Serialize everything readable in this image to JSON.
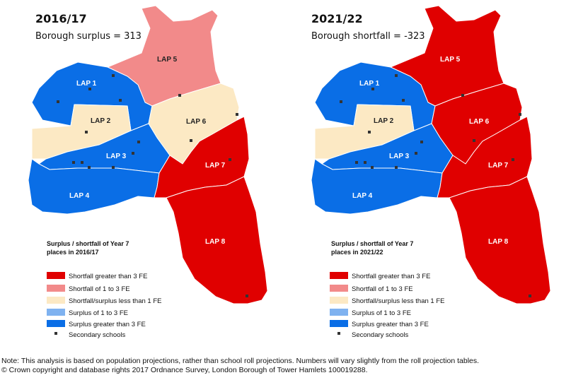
{
  "colors": {
    "shortfall_gt3": "#e00000",
    "shortfall_1to3": "#f28a8a",
    "neutral": "#fce9c4",
    "surplus_1to3": "#7fb2f0",
    "surplus_gt3": "#0a6ee6",
    "school": "#333333"
  },
  "maps": [
    {
      "title": "2016/17",
      "subtitle": "Borough surplus = 313",
      "legend_title_line1": "Surplus / shortfall of Year 7",
      "legend_title_line2": "places in 2016/17",
      "areas": {
        "LAP 1": "surplus_gt3",
        "LAP 2": "neutral",
        "LAP 3": "surplus_gt3",
        "LAP 4": "surplus_gt3",
        "LAP 5": "shortfall_1to3",
        "LAP 6": "neutral",
        "LAP 7": "shortfall_gt3",
        "LAP 8": "shortfall_gt3"
      }
    },
    {
      "title": "2021/22",
      "subtitle": "Borough shortfall = -323",
      "legend_title_line1": "Surplus / shortfall of Year 7",
      "legend_title_line2": "places in 2021/22",
      "areas": {
        "LAP 1": "surplus_gt3",
        "LAP 2": "neutral",
        "LAP 3": "surplus_gt3",
        "LAP 4": "surplus_gt3",
        "LAP 5": "shortfall_gt3",
        "LAP 6": "shortfall_gt3",
        "LAP 7": "shortfall_gt3",
        "LAP 8": "shortfall_gt3"
      }
    }
  ],
  "area_labels": [
    "LAP 1",
    "LAP 2",
    "LAP 3",
    "LAP 4",
    "LAP 5",
    "LAP 6",
    "LAP 7",
    "LAP 8"
  ],
  "legend": {
    "items": [
      {
        "label": "Shortfall greater than 3 FE",
        "color_key": "shortfall_gt3"
      },
      {
        "label": "Shortfall of 1 to 3 FE",
        "color_key": "shortfall_1to3"
      },
      {
        "label": "Shortfall/surplus less than 1 FE",
        "color_key": "neutral"
      },
      {
        "label": "Surplus of 1 to 3 FE",
        "color_key": "surplus_1to3"
      },
      {
        "label": "Surplus greater than 3 FE",
        "color_key": "surplus_gt3"
      }
    ],
    "schools_label": "Secondary schools"
  },
  "footer": {
    "note": "Note: This analysis is based on population projections, rather than school roll projections. Numbers will vary slightly from the roll projection tables.",
    "copyright": "© Crown copyright and database rights 2017 Ordnance Survey, London Borough of Tower Hamlets 100019288."
  }
}
